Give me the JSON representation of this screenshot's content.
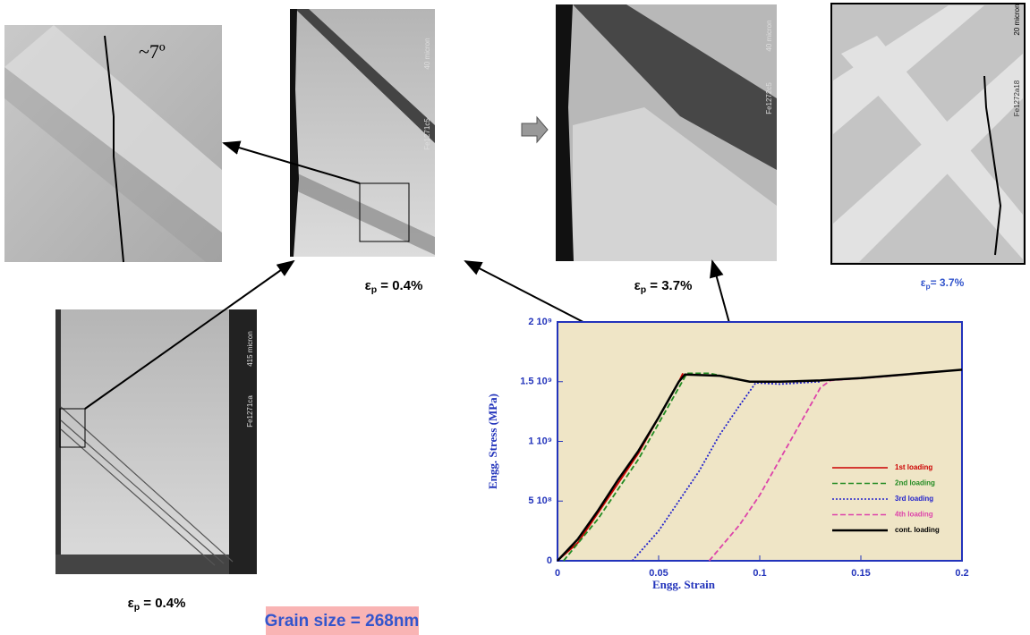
{
  "images": [
    {
      "scale": "40 micron",
      "id": "Fe1271c5"
    },
    {
      "scale": "40 micron",
      "id": "Fe1272c5"
    },
    {
      "scale": "20 micron",
      "id": "Fe1272a18"
    },
    {
      "scale": "415 micron",
      "id": "Fe1271ca"
    }
  ],
  "angle_note": "~7º",
  "strain_labels": [
    {
      "symbol": "ε",
      "sub": "p",
      "text": " = 0.4%"
    },
    {
      "symbol": "ε",
      "sub": "p",
      "text": " = 3.7%"
    },
    {
      "symbol": "ε",
      "sub": "p",
      "text": "= 3.7%"
    },
    {
      "symbol": "ε",
      "sub": "p",
      "text": " = 0.4%"
    }
  ],
  "grain_size": "Grain size = 268nm",
  "chart_data": {
    "type": "line",
    "x_label": "Engg. Strain",
    "y_label": "Engg. Stress (MPa)",
    "xlim": [
      0,
      0.2
    ],
    "ylim": [
      0,
      2000000000
    ],
    "xticks": [
      0,
      0.05,
      0.1,
      0.15,
      0.2
    ],
    "yticks": [
      0,
      {
        "value": 500000000,
        "label": "5 10⁸"
      },
      {
        "value": 1000000000,
        "label": "1 10⁹"
      },
      {
        "value": 1500000000,
        "label": "1.5 10⁹"
      },
      {
        "value": 2000000000,
        "label": "2 10⁹"
      }
    ],
    "legend": "right",
    "series": [
      {
        "name": "1st loading",
        "color": "#cc0000",
        "dash": "solid",
        "x": [
          0,
          0.01,
          0.02,
          0.03,
          0.04,
          0.05,
          0.06,
          0.062
        ],
        "values": [
          0,
          150000000,
          400000000,
          650000000,
          900000000,
          1200000000,
          1500000000,
          1570000000
        ]
      },
      {
        "name": "2nd loading",
        "color": "#228b22",
        "dash": "dashed",
        "x": [
          0.003,
          0.02,
          0.04,
          0.06,
          0.064,
          0.075,
          0.09
        ],
        "values": [
          0,
          350000000,
          850000000,
          1450000000,
          1570000000,
          1570000000,
          1520000000
        ]
      },
      {
        "name": "3rd loading",
        "color": "#2222cc",
        "dash": "dotted",
        "x": [
          0.037,
          0.05,
          0.06,
          0.07,
          0.08,
          0.09,
          0.098,
          0.11,
          0.13
        ],
        "values": [
          0,
          250000000,
          500000000,
          750000000,
          1050000000,
          1300000000,
          1490000000,
          1480000000,
          1500000000
        ]
      },
      {
        "name": "4th loading",
        "color": "#dd44aa",
        "dash": "dashed",
        "x": [
          0.075,
          0.09,
          0.1,
          0.11,
          0.12,
          0.13,
          0.135,
          0.16,
          0.18
        ],
        "values": [
          0,
          300000000,
          550000000,
          850000000,
          1150000000,
          1450000000,
          1510000000,
          1540000000,
          1570000000
        ]
      },
      {
        "name": "cont. loading",
        "color": "#000000",
        "dash": "solid",
        "x": [
          0,
          0.01,
          0.02,
          0.03,
          0.04,
          0.05,
          0.06,
          0.063,
          0.08,
          0.095,
          0.11,
          0.13,
          0.15,
          0.2
        ],
        "values": [
          0,
          180000000,
          420000000,
          680000000,
          920000000,
          1200000000,
          1500000000,
          1560000000,
          1550000000,
          1500000000,
          1500000000,
          1510000000,
          1530000000,
          1600000000
        ]
      }
    ]
  }
}
